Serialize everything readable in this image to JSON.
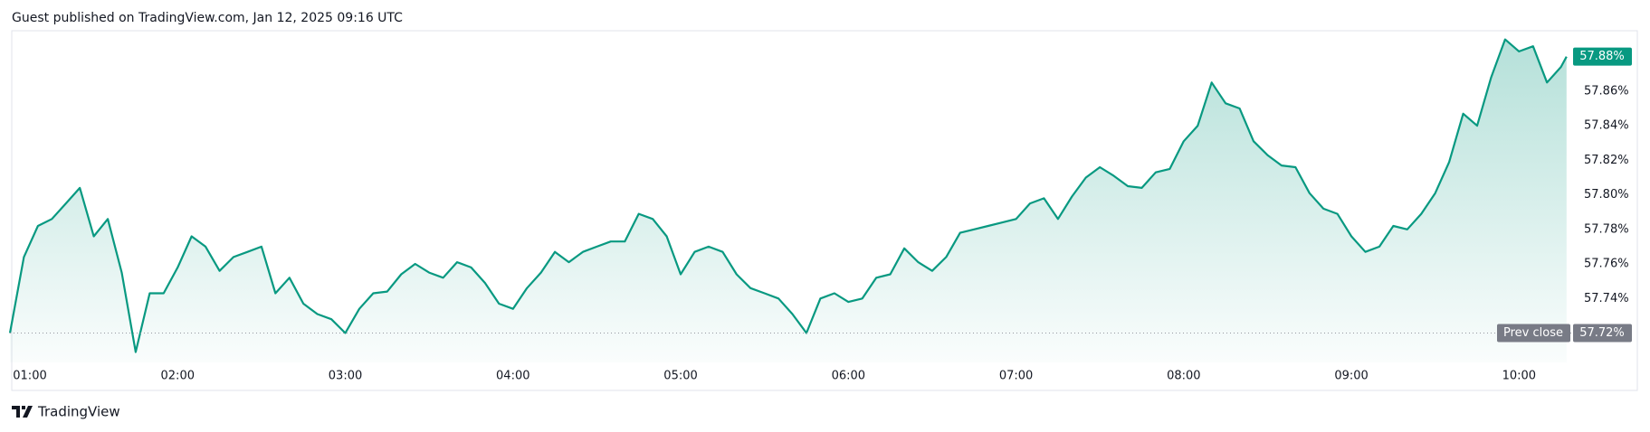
{
  "header": "Guest published on TradingView.com, Jan 12, 2025 09:16 UTC",
  "brand": "TradingView",
  "chart_data": {
    "type": "area",
    "color": "#089981",
    "x": [
      "01:00",
      "01:05",
      "01:10",
      "01:15",
      "01:20",
      "01:25",
      "01:30",
      "01:35",
      "01:40",
      "01:45",
      "01:50",
      "01:55",
      "02:00",
      "02:05",
      "02:10",
      "02:15",
      "02:20",
      "02:25",
      "02:30",
      "02:35",
      "02:40",
      "02:45",
      "02:50",
      "02:55",
      "03:00",
      "03:05",
      "03:10",
      "03:15",
      "03:20",
      "03:25",
      "03:30",
      "03:35",
      "03:40",
      "03:45",
      "03:50",
      "03:55",
      "04:00",
      "04:05",
      "04:10",
      "04:15",
      "04:20",
      "04:25",
      "04:30",
      "04:35",
      "04:40",
      "04:45",
      "04:50",
      "04:55",
      "05:00",
      "05:05",
      "05:10",
      "05:15",
      "05:20",
      "05:25",
      "05:30",
      "05:35",
      "05:40",
      "05:45",
      "05:50",
      "05:55",
      "06:00",
      "06:05",
      "06:10",
      "06:15",
      "06:20",
      "06:25",
      "06:30",
      "06:35",
      "06:40",
      "06:45",
      "06:50",
      "06:55",
      "07:00",
      "07:05",
      "07:10",
      "07:15",
      "07:20",
      "07:25",
      "07:30",
      "07:35",
      "07:40",
      "07:45",
      "07:50",
      "07:55",
      "08:00",
      "08:05",
      "08:10",
      "08:15",
      "08:20",
      "08:25",
      "08:30",
      "08:35",
      "08:40",
      "08:45",
      "08:50",
      "08:55",
      "09:00",
      "09:05",
      "09:10",
      "09:15",
      "09:20",
      "09:25",
      "09:30",
      "09:35",
      "09:40",
      "09:45",
      "09:50",
      "09:55",
      "10:00",
      "10:05",
      "10:10",
      "10:15",
      "10:17"
    ],
    "values": [
      57.72,
      57.764,
      57.782,
      57.786,
      57.795,
      57.804,
      57.776,
      57.786,
      57.755,
      57.709,
      57.743,
      57.743,
      57.758,
      57.776,
      57.77,
      57.756,
      57.764,
      57.767,
      57.77,
      57.743,
      57.752,
      57.737,
      57.731,
      57.728,
      57.72,
      57.734,
      57.743,
      57.744,
      57.754,
      57.76,
      57.755,
      57.752,
      57.761,
      57.758,
      57.749,
      57.737,
      57.734,
      57.746,
      57.755,
      57.767,
      57.761,
      57.767,
      57.77,
      57.773,
      57.773,
      57.789,
      57.786,
      57.776,
      57.754,
      57.767,
      57.77,
      57.767,
      57.754,
      57.746,
      57.743,
      57.74,
      57.731,
      57.72,
      57.74,
      57.743,
      57.738,
      57.74,
      57.752,
      57.754,
      57.769,
      57.761,
      57.756,
      57.764,
      57.778,
      57.78,
      57.782,
      57.784,
      57.786,
      57.795,
      57.798,
      57.786,
      57.799,
      57.81,
      57.816,
      57.811,
      57.805,
      57.804,
      57.813,
      57.815,
      57.831,
      57.84,
      57.865,
      57.853,
      57.85,
      57.831,
      57.823,
      57.817,
      57.816,
      57.801,
      57.792,
      57.789,
      57.776,
      57.767,
      57.77,
      57.782,
      57.78,
      57.789,
      57.801,
      57.819,
      57.847,
      57.84,
      57.868,
      57.89,
      57.883,
      57.886,
      57.865,
      57.874,
      57.88
    ],
    "xlim": [
      "01:00",
      "10:19"
    ],
    "xticks": [
      "01:00",
      "02:00",
      "03:00",
      "04:00",
      "05:00",
      "06:00",
      "07:00",
      "08:00",
      "09:00",
      "10:00"
    ],
    "ylim": [
      57.703,
      57.895
    ],
    "yticks": [
      {
        "value": 57.74,
        "label": "57.74%"
      },
      {
        "value": 57.76,
        "label": "57.76%"
      },
      {
        "value": 57.78,
        "label": "57.78%"
      },
      {
        "value": 57.8,
        "label": "57.80%"
      },
      {
        "value": 57.82,
        "label": "57.82%"
      },
      {
        "value": 57.84,
        "label": "57.84%"
      },
      {
        "value": 57.86,
        "label": "57.86%"
      }
    ],
    "grid": false,
    "last_price": {
      "value": 57.88,
      "label": "57.88%"
    },
    "prev_close": {
      "name": "Prev close",
      "value": 57.72,
      "label": "57.72%"
    }
  }
}
